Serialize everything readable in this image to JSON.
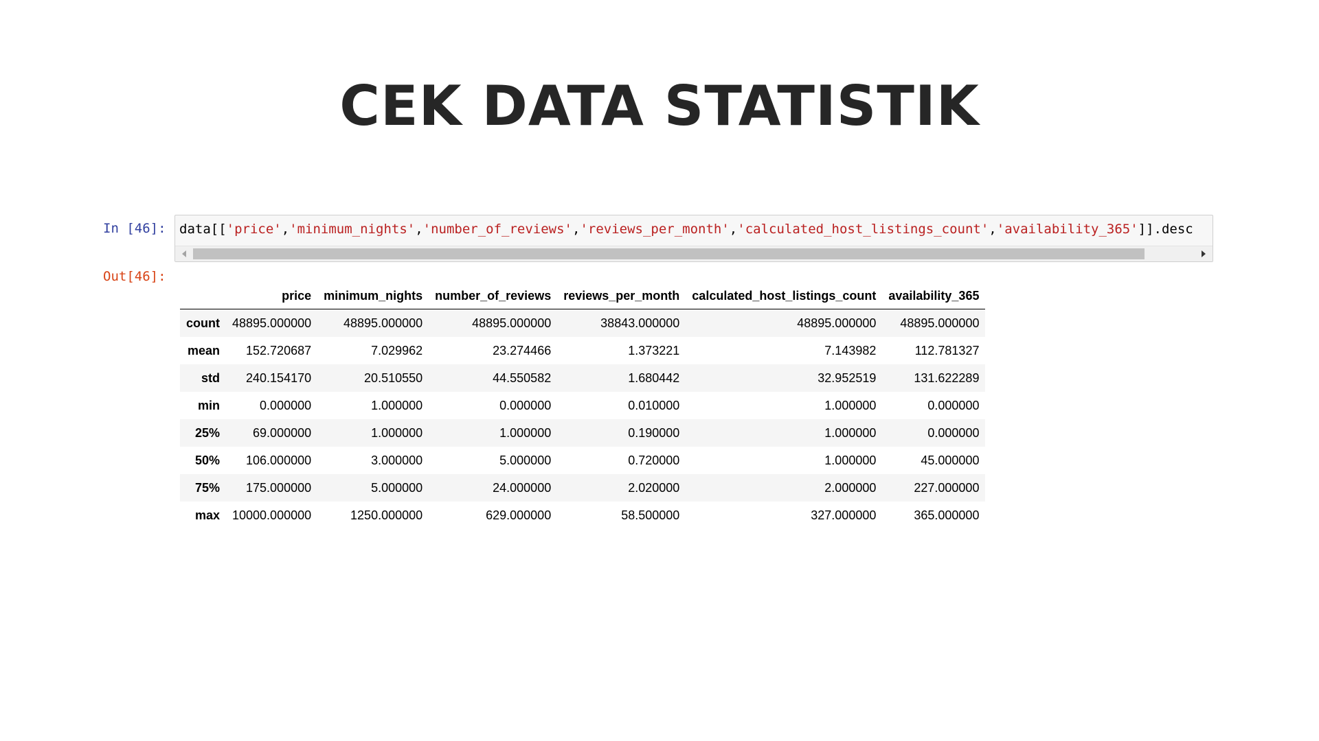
{
  "slide": {
    "title": "CEK DATA STATISTIK"
  },
  "notebook": {
    "in_prompt": "In [46]:",
    "out_prompt": "Out[46]:",
    "code": {
      "prefix": "data[[",
      "columns": [
        "'price'",
        "'minimum_nights'",
        "'number_of_reviews'",
        "'reviews_per_month'",
        "'calculated_host_listings_count'",
        "'availability_365'"
      ],
      "separator": ",",
      "suffix": "]].desc"
    }
  },
  "table": {
    "columns": [
      "",
      "price",
      "minimum_nights",
      "number_of_reviews",
      "reviews_per_month",
      "calculated_host_listings_count",
      "availability_365"
    ],
    "rows": [
      {
        "label": "count",
        "values": [
          "48895.000000",
          "48895.000000",
          "48895.000000",
          "38843.000000",
          "48895.000000",
          "48895.000000"
        ]
      },
      {
        "label": "mean",
        "values": [
          "152.720687",
          "7.029962",
          "23.274466",
          "1.373221",
          "7.143982",
          "112.781327"
        ]
      },
      {
        "label": "std",
        "values": [
          "240.154170",
          "20.510550",
          "44.550582",
          "1.680442",
          "32.952519",
          "131.622289"
        ]
      },
      {
        "label": "min",
        "values": [
          "0.000000",
          "1.000000",
          "0.000000",
          "0.010000",
          "1.000000",
          "0.000000"
        ]
      },
      {
        "label": "25%",
        "values": [
          "69.000000",
          "1.000000",
          "1.000000",
          "0.190000",
          "1.000000",
          "0.000000"
        ]
      },
      {
        "label": "50%",
        "values": [
          "106.000000",
          "3.000000",
          "5.000000",
          "0.720000",
          "1.000000",
          "45.000000"
        ]
      },
      {
        "label": "75%",
        "values": [
          "175.000000",
          "5.000000",
          "24.000000",
          "2.020000",
          "2.000000",
          "227.000000"
        ]
      },
      {
        "label": "max",
        "values": [
          "10000.000000",
          "1250.000000",
          "629.000000",
          "58.500000",
          "327.000000",
          "365.000000"
        ]
      }
    ]
  }
}
